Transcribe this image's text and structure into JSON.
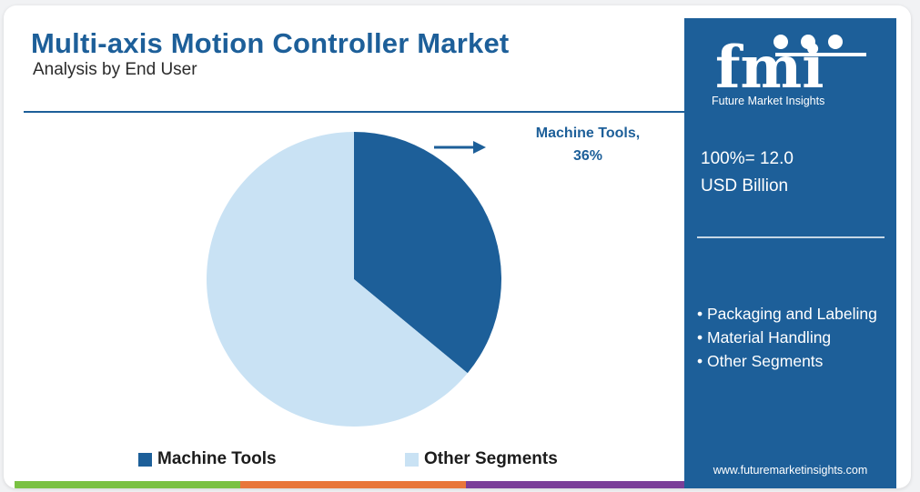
{
  "title": "Multi-axis Motion Controller Market",
  "subtitle": "Analysis by End User",
  "callout": {
    "line1": "Machine Tools,",
    "line2": "36%"
  },
  "colors": {
    "brand": "#1d5f99",
    "machine_tools": "#1d5f99",
    "other_segments": "#c9e2f4"
  },
  "chart_data": {
    "type": "pie",
    "slices": [
      {
        "label": "Machine Tools",
        "value": 36
      },
      {
        "label": "Other Segments",
        "value": 64
      }
    ],
    "annotations": [
      "Machine Tools, 36%"
    ],
    "legend": [
      "Machine Tools",
      "Other Segments"
    ],
    "legend_placement": "bottom"
  },
  "side_panel": {
    "logo_text": "fmi",
    "logo_caption": "Future Market Insights",
    "total_line1": "100%= 12.0",
    "total_line2": "USD Billion",
    "segments": [
      "• Packaging and Labeling",
      "• Material Handling",
      "• Other Segments"
    ],
    "website": "www.futuremarketinsights.com"
  }
}
